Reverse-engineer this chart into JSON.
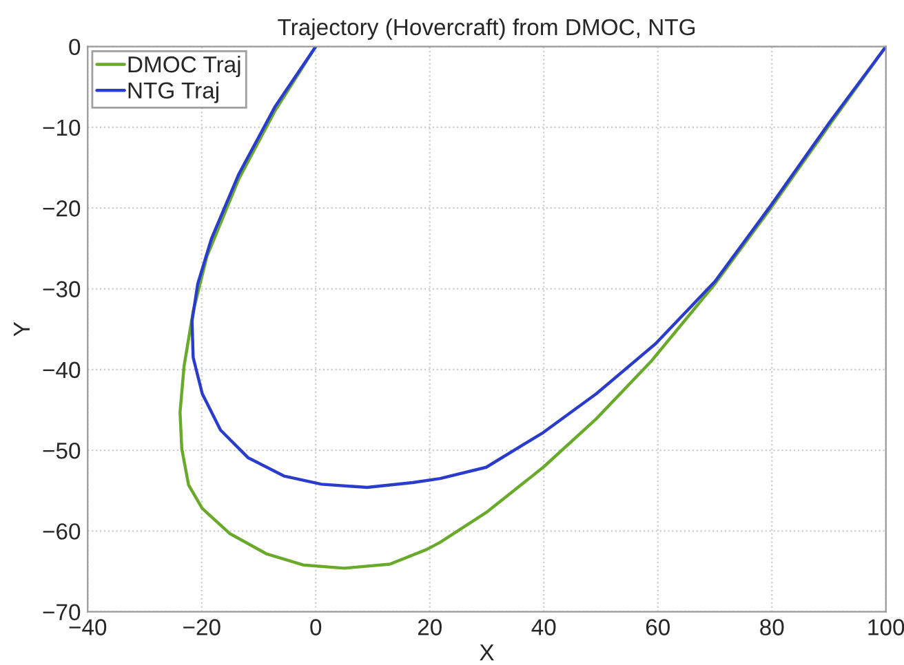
{
  "chart_data": {
    "type": "line",
    "title": "Trajectory (Hovercraft) from DMOC, NTG",
    "xlabel": "X",
    "ylabel": "Y",
    "xlim": [
      -40,
      100
    ],
    "xticks": [
      -40,
      -20,
      0,
      20,
      40,
      60,
      80,
      100
    ],
    "ylim": [
      -70,
      0
    ],
    "yticks": [
      -70,
      -60,
      -50,
      -40,
      -30,
      -20,
      -10,
      0
    ],
    "grid": true,
    "legend": "top left",
    "line_style": "solid",
    "marker": "none",
    "series": [
      {
        "name": "DMOC Traj",
        "color": "#6aaa2a",
        "x": [
          0,
          -7.1,
          -13.5,
          -19.1,
          -21.5,
          -23.1,
          -23.8,
          -23.5,
          -22.3,
          -19.9,
          -15.1,
          -8.7,
          -2.2,
          5,
          13,
          19.4,
          21.8,
          29.9,
          39.9,
          49.2,
          58.8,
          70,
          79.7,
          90.2,
          100
        ],
        "values": [
          0,
          -7.9,
          -16.4,
          -26,
          -32.8,
          -39.6,
          -45.3,
          -49.8,
          -54.3,
          -57.2,
          -60.3,
          -62.8,
          -64.2,
          -64.6,
          -64.1,
          -62.3,
          -61.4,
          -57.7,
          -52.1,
          -46.1,
          -39,
          -29.4,
          -20.1,
          -9.6,
          0
        ]
      },
      {
        "name": "NTG Traj",
        "color": "#2a3ccc",
        "x": [
          0,
          -7.1,
          -13.5,
          -18.3,
          -20.7,
          -21.7,
          -21.5,
          -19.9,
          -16.7,
          -11.9,
          -5.5,
          1,
          9,
          17,
          21.8,
          29.9,
          39.9,
          49.2,
          59.6,
          70,
          79.7,
          90.2,
          100
        ],
        "values": [
          0,
          -7.4,
          -15.8,
          -23.8,
          -29.4,
          -34,
          -38.5,
          -43,
          -47.5,
          -50.9,
          -53.2,
          -54.2,
          -54.6,
          -54,
          -53.5,
          -52.1,
          -47.8,
          -43,
          -36.8,
          -29.1,
          -19.8,
          -9.3,
          0
        ]
      }
    ]
  }
}
